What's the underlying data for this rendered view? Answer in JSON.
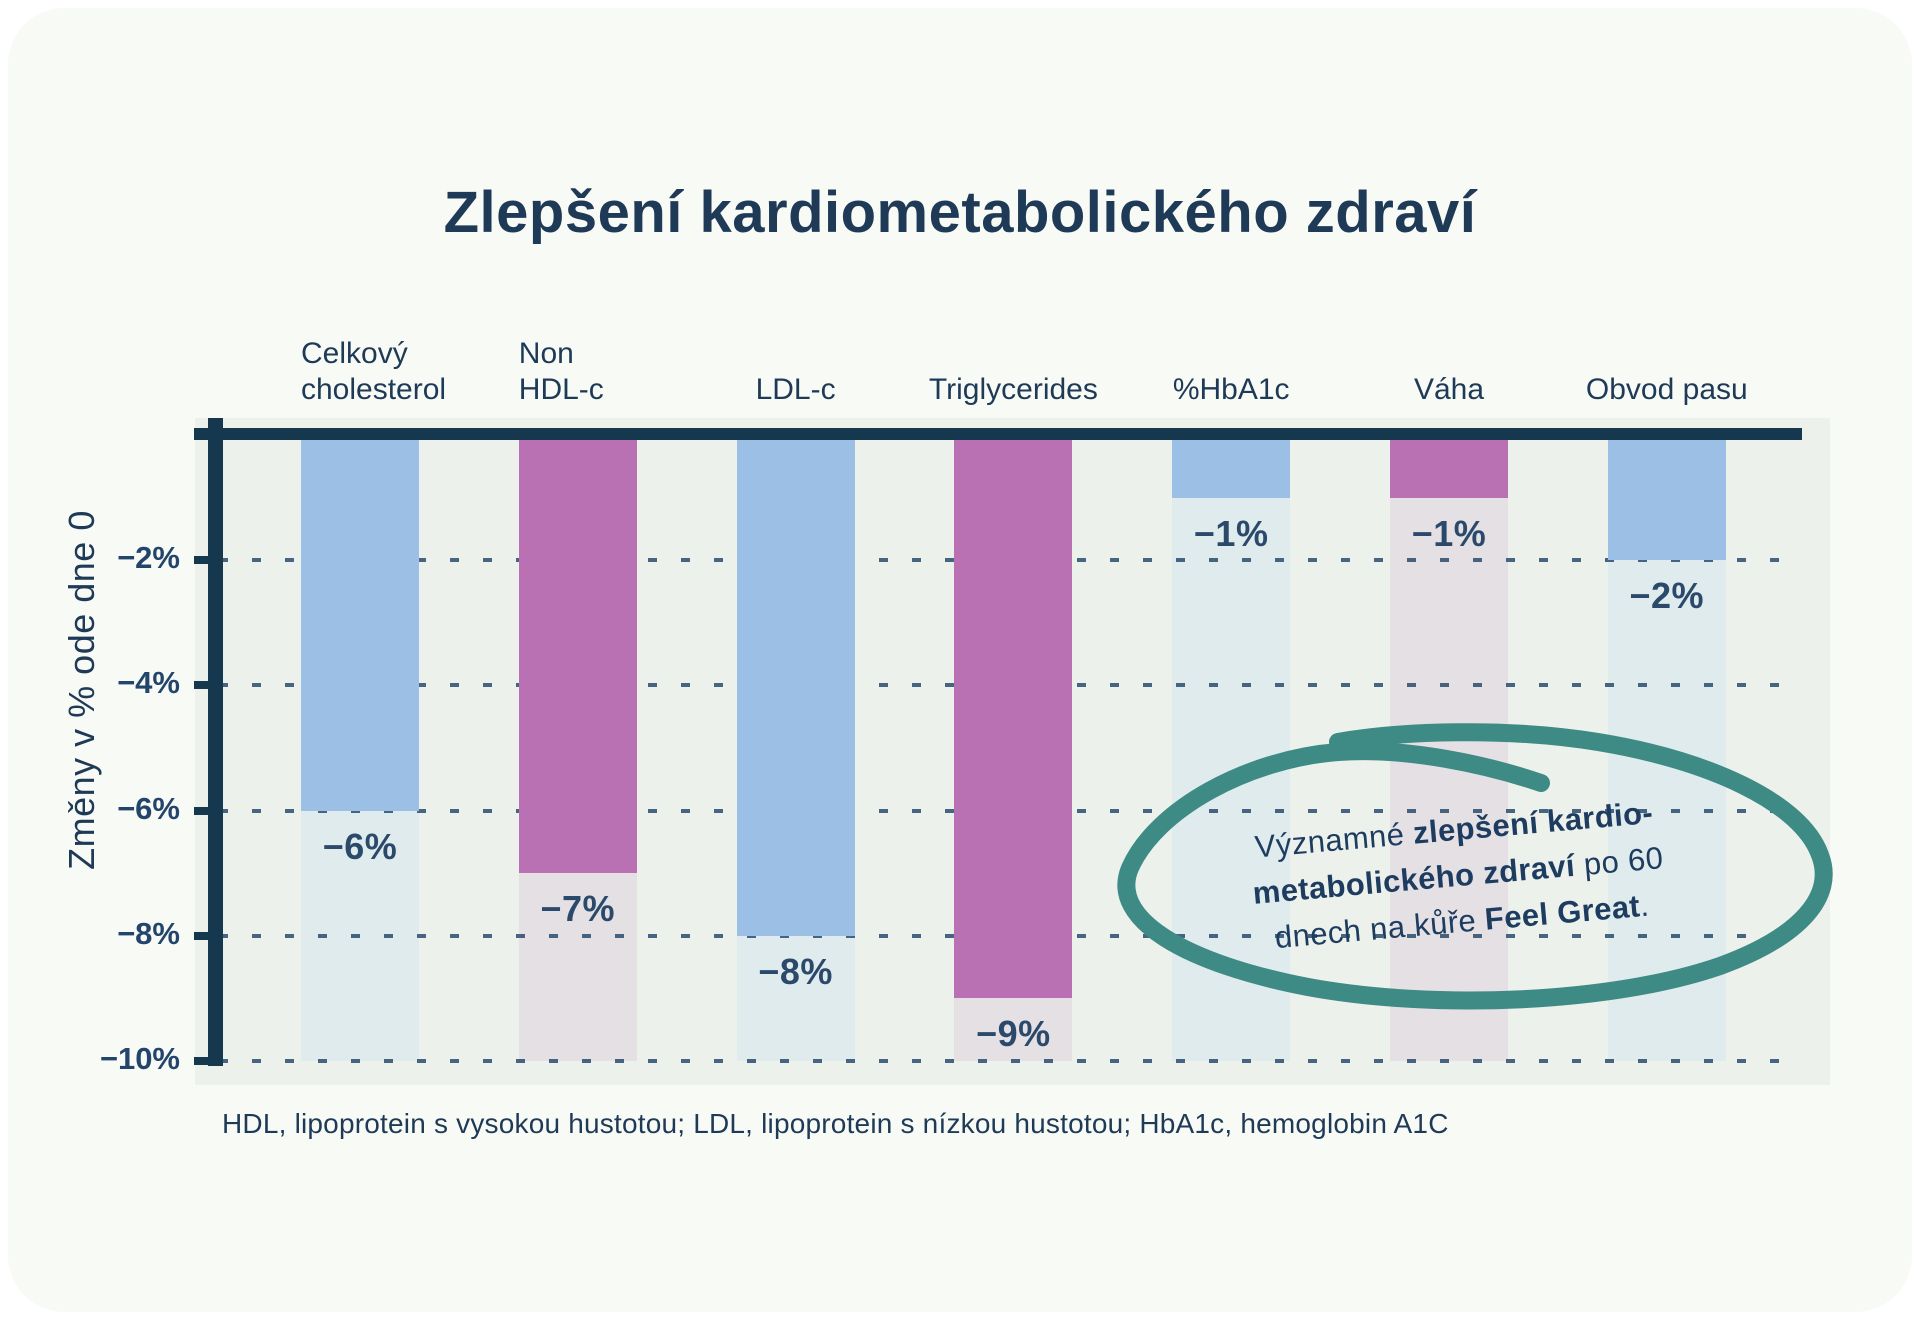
{
  "page_title": "Zlepšení kardiometabolického zdraví",
  "chart_data": {
    "type": "bar",
    "title": "Zlepšení kardiometabolického zdraví",
    "xlabel": "",
    "ylabel": "Změny v % ode dne 0",
    "ylim": [
      0,
      -10
    ],
    "grid": "dashed-horizontal",
    "legend": "none",
    "yticks": [
      {
        "value": -2,
        "label": "−2%"
      },
      {
        "value": -4,
        "label": "−4%"
      },
      {
        "value": -6,
        "label": "−6%"
      },
      {
        "value": -8,
        "label": "−8%"
      },
      {
        "value": -10,
        "label": "−10%"
      }
    ],
    "categories": [
      "Celkový cholesterol",
      "Non HDL-c",
      "LDL-c",
      "Triglycerides",
      "%HbA1c",
      "Váha",
      "Obvod pasu"
    ],
    "category_label_lines": [
      [
        "Celkový",
        "cholesterol"
      ],
      [
        "Non",
        "HDL-c"
      ],
      [
        "LDL-c"
      ],
      [
        "Triglycerides"
      ],
      [
        "%HbA1c"
      ],
      [
        "Váha"
      ],
      [
        "Obvod pasu"
      ]
    ],
    "values": [
      -6,
      -7,
      -8,
      -9,
      -1,
      -1,
      -2
    ],
    "value_labels": [
      "−6%",
      "−7%",
      "−8%",
      "−9%",
      "−1%",
      "−1%",
      "−2%"
    ],
    "bar_colors": [
      "#9bbfe5",
      "#b971b3",
      "#9bbfe5",
      "#b971b3",
      "#9bbfe5",
      "#b971b3",
      "#9bbfe5"
    ],
    "track_colors": [
      "#dfebec",
      "#e4e0e4",
      "#dfebec",
      "#e4e0e4",
      "#dfebec",
      "#e4e0e4",
      "#dfebec"
    ]
  },
  "annotation": {
    "circle_color": "#3e8a85",
    "lines": [
      [
        {
          "text": "Významné ",
          "bold": false
        },
        {
          "text": "zlepšení kardio-",
          "bold": true
        }
      ],
      [
        {
          "text": "metabolického zdraví",
          "bold": true
        },
        {
          "text": " po 60",
          "bold": false
        }
      ],
      [
        {
          "text": "dnech na kůře ",
          "bold": false
        },
        {
          "text": "Feel Great",
          "bold": true
        },
        {
          "text": ".",
          "bold": false
        }
      ]
    ]
  },
  "footnote": "HDL, lipoprotein s vysokou hustotou; LDL, lipoprotein s nízkou hustotou; HbA1c, hemoglobin A1C",
  "colors": {
    "card_background": "#f8faf6",
    "plot_background": "#ecf1eb",
    "axis_navy": "#16384f",
    "text_navy": "#1e3a56",
    "bar_blue": "#9bbfe5",
    "bar_purple": "#b971b3",
    "annotation_teal": "#3e8a85"
  }
}
